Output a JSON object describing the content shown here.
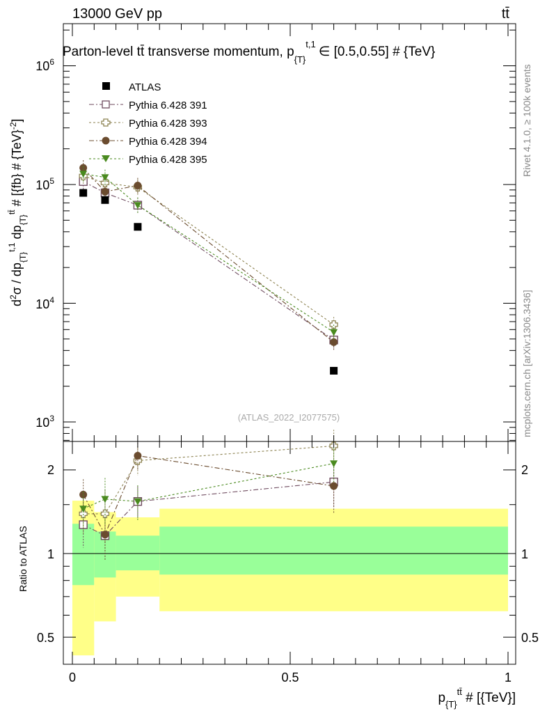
{
  "header": {
    "energy": "13000 GeV pp",
    "process": "tt̄",
    "title": "Parton-level tt̄ transverse momentum, p",
    "title_sub": "{T}",
    "title_sup": "t,1",
    "title_tail": "∈ [0.5,0.55] # {TeV}",
    "watermark": "(ATLAS_2022_I2077575)",
    "side_rivet": "Rivet 4.1.0, ≥ 100k events",
    "side_mcplots": "mcplots.cern.ch [arXiv:1306.3436]"
  },
  "axes": {
    "ylabel_main": "d²σ / dp{T}t,1 dp{T}tt̄ # [{fb} # {TeV}⁻²]",
    "ylabel_ratio": "Ratio to ATLAS",
    "xlabel": "p{T}tt̄ # [{TeV}]",
    "main_ticks": [
      "10³",
      "10⁴",
      "10⁵",
      "10⁶"
    ],
    "ratio_ticks": [
      "0.5",
      "1",
      "2"
    ],
    "x_ticks": [
      "0",
      "0.5",
      "1"
    ]
  },
  "legend": {
    "atlas": "ATLAS",
    "s391": "Pythia 6.428 391",
    "s393": "Pythia 6.428 393",
    "s394": "Pythia 6.428 394",
    "s395": "Pythia 6.428 395"
  },
  "chart_data": {
    "type": "scatter",
    "title": "Parton-level tt̄ transverse momentum, p{T}t,1 ∈ [0.5,0.55] # {TeV}",
    "xlabel": "p{T}tt̄ # [{TeV}]",
    "ylabel": "d²σ / dp{T}t,1 dp{T}tt̄ # [{fb} # {TeV}⁻²]",
    "xlim": [
      0,
      1
    ],
    "ylim": [
      700,
      2300000
    ],
    "yscale": "log",
    "ratio_ylim": [
      0.4,
      2.4
    ],
    "x": [
      0.025,
      0.075,
      0.15,
      0.6
    ],
    "bins": [
      [
        0,
        0.05
      ],
      [
        0.05,
        0.1
      ],
      [
        0.1,
        0.2
      ],
      [
        0.2,
        1.0
      ]
    ],
    "data": {
      "name": "ATLAS",
      "values": [
        85000,
        74000,
        44000,
        2700
      ],
      "band_inner": [
        [
          0.77,
          1.28
        ],
        [
          0.82,
          1.2
        ],
        [
          0.87,
          1.16
        ],
        [
          0.84,
          1.25
        ]
      ],
      "band_outer": [
        [
          0.43,
          1.55
        ],
        [
          0.57,
          1.41
        ],
        [
          0.7,
          1.35
        ],
        [
          0.62,
          1.45
        ]
      ]
    },
    "series": [
      {
        "name": "Pythia 6.428 391",
        "color": "#6e4a5e",
        "marker": "square-open",
        "values": [
          106000,
          85000,
          67000,
          4900
        ],
        "ratio": [
          1.27,
          1.16,
          1.54,
          1.81
        ],
        "ratio_err": [
          0.22,
          0.2,
          0.2,
          0.35
        ]
      },
      {
        "name": "Pythia 6.428 393",
        "color": "#8c8250",
        "marker": "cross-open",
        "values": [
          118000,
          103000,
          95000,
          6600
        ],
        "ratio": [
          1.39,
          1.39,
          2.16,
          2.44
        ],
        "ratio_err": [
          0.22,
          0.3,
          0.25,
          0.35
        ]
      },
      {
        "name": "Pythia 6.428 394",
        "color": "#6b4c2f",
        "marker": "circle",
        "values": [
          138000,
          87000,
          98000,
          4700
        ],
        "ratio": [
          1.63,
          1.17,
          2.25,
          1.75
        ],
        "ratio_err": [
          0.22,
          0.22,
          0.25,
          0.35
        ]
      },
      {
        "name": "Pythia 6.428 395",
        "color": "#4a8a1f",
        "marker": "triangle-down",
        "values": [
          123000,
          115000,
          67000,
          5700
        ],
        "ratio": [
          1.45,
          1.57,
          1.54,
          2.11
        ],
        "ratio_err": [
          0.22,
          0.3,
          0.22,
          0.3
        ]
      }
    ]
  }
}
